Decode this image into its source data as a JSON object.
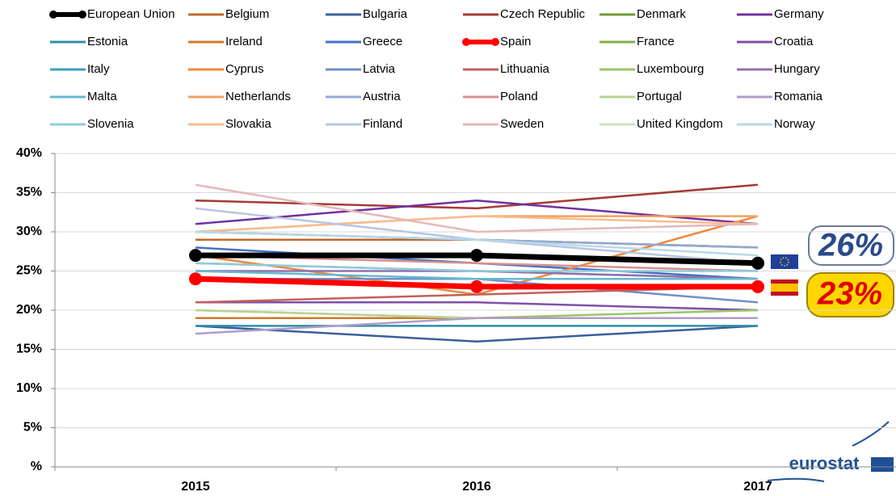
{
  "chart_data": {
    "type": "line",
    "categories": [
      "2015",
      "2016",
      "2017"
    ],
    "ylim": [
      0,
      40
    ],
    "yticks": [
      {
        "value": 0,
        "label": "%"
      },
      {
        "value": 5,
        "label": "5%"
      },
      {
        "value": 10,
        "label": "10%"
      },
      {
        "value": 15,
        "label": "15%"
      },
      {
        "value": 20,
        "label": "20%"
      },
      {
        "value": 25,
        "label": "25%"
      },
      {
        "value": 30,
        "label": "30%"
      },
      {
        "value": 35,
        "label": "35%"
      },
      {
        "value": 40,
        "label": "40%"
      }
    ],
    "grid": true,
    "legend": "top",
    "annotations": [
      "26%",
      "23%"
    ],
    "logo": "eurostat",
    "series": [
      {
        "name": "European Union",
        "color": "#000000",
        "values": [
          27,
          27,
          26
        ],
        "marker": true
      },
      {
        "name": "Belgium",
        "color": "#c0692a",
        "values": [
          29,
          29,
          28
        ]
      },
      {
        "name": "Bulgaria",
        "color": "#3a5f9a",
        "values": [
          18,
          16,
          18
        ]
      },
      {
        "name": "Czech Republic",
        "color": "#a33a36",
        "values": [
          34,
          33,
          36
        ]
      },
      {
        "name": "Denmark",
        "color": "#6f9a35",
        "values": [
          26,
          25,
          24
        ]
      },
      {
        "name": "Germany",
        "color": "#7030a0",
        "values": [
          31,
          34,
          31
        ]
      },
      {
        "name": "Estonia",
        "color": "#2f8fa8",
        "values": [
          18,
          18,
          18
        ]
      },
      {
        "name": "Ireland",
        "color": "#d0792a",
        "values": [
          19,
          19,
          19
        ]
      },
      {
        "name": "Greece",
        "color": "#4472c4",
        "values": [
          28,
          26,
          24
        ]
      },
      {
        "name": "Spain",
        "color": "#ff0000",
        "values": [
          24,
          23,
          23
        ],
        "marker": true
      },
      {
        "name": "France",
        "color": "#7fb041",
        "values": [
          30,
          29,
          28
        ]
      },
      {
        "name": "Croatia",
        "color": "#8050a8",
        "values": [
          21,
          21,
          20
        ]
      },
      {
        "name": "Italy",
        "color": "#3ea0bb",
        "values": [
          24,
          24,
          24
        ]
      },
      {
        "name": "Cyprus",
        "color": "#f0883a",
        "values": [
          27,
          22,
          32
        ]
      },
      {
        "name": "Latvia",
        "color": "#6f8fc8",
        "values": [
          24,
          24,
          21
        ]
      },
      {
        "name": "Lithuania",
        "color": "#c0605c",
        "values": [
          21,
          22,
          23
        ]
      },
      {
        "name": "Luxembourg",
        "color": "#9cc56a",
        "values": [
          20,
          19,
          20
        ]
      },
      {
        "name": "Hungary",
        "color": "#9070b0",
        "values": [
          25,
          25,
          24
        ]
      },
      {
        "name": "Malta",
        "color": "#66b8d0",
        "values": [
          25,
          24,
          24
        ]
      },
      {
        "name": "Netherlands",
        "color": "#f4a060",
        "values": [
          30,
          32,
          32
        ]
      },
      {
        "name": "Austria",
        "color": "#94a8d4",
        "values": [
          30,
          29,
          28
        ]
      },
      {
        "name": "Poland",
        "color": "#d8908c",
        "values": [
          27,
          26,
          25
        ]
      },
      {
        "name": "Portugal",
        "color": "#b8d494",
        "values": [
          20,
          19,
          19
        ]
      },
      {
        "name": "Romania",
        "color": "#b09cc8",
        "values": [
          17,
          19,
          19
        ]
      },
      {
        "name": "Slovenia",
        "color": "#90cbdc",
        "values": [
          26,
          25,
          25
        ]
      },
      {
        "name": "Slovakia",
        "color": "#f8bc90",
        "values": [
          30,
          32,
          31
        ]
      },
      {
        "name": "Finland",
        "color": "#b8c4e0",
        "values": [
          33,
          29,
          26
        ]
      },
      {
        "name": "Sweden",
        "color": "#e4b8b6",
        "values": [
          36,
          30,
          31
        ]
      },
      {
        "name": "United Kingdom",
        "color": "#d0e2bc",
        "values": [
          27,
          27,
          26
        ]
      },
      {
        "name": "Norway",
        "color": "#b8d8e8",
        "values": [
          30,
          29,
          27
        ]
      }
    ]
  }
}
